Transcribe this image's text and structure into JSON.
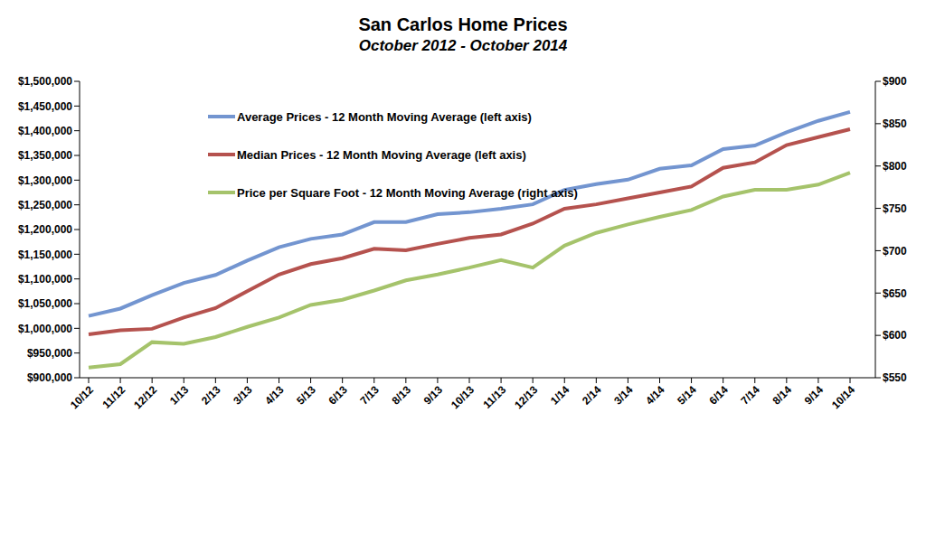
{
  "chart_data": {
    "type": "line",
    "title": "San Carlos Home Prices",
    "subtitle": "October 2012 - October 2014",
    "categories": [
      "10/12",
      "11/12",
      "12/12",
      "1/13",
      "2/13",
      "3/13",
      "4/13",
      "5/13",
      "6/13",
      "7/13",
      "8/13",
      "9/13",
      "10/13",
      "11/13",
      "12/13",
      "1/14",
      "2/14",
      "3/14",
      "4/14",
      "5/14",
      "6/14",
      "7/14",
      "8/14",
      "9/14",
      "10/14"
    ],
    "series": [
      {
        "name": "Average Prices - 12 Month Moving Average (left axis)",
        "color": "#7395d0",
        "values": [
          1025000,
          1040000,
          1067000,
          1092000,
          1108000,
          1137000,
          1164000,
          1181000,
          1190000,
          1215000,
          1215000,
          1231000,
          1235000,
          1242000,
          1251000,
          1280000,
          1292000,
          1301000,
          1323000,
          1330000,
          1363000,
          1370000,
          1397000,
          1420000,
          1438000
        ]
      },
      {
        "name": "Median Prices - 12 Month Moving Average (left axis)",
        "color": "#b5524e",
        "values": [
          988000,
          996000,
          999000,
          1022000,
          1041000,
          1075000,
          1109000,
          1130000,
          1142000,
          1161000,
          1158000,
          1171000,
          1183000,
          1190000,
          1212000,
          1242000,
          1251000,
          1263000,
          1275000,
          1287000,
          1325000,
          1336000,
          1371000,
          1387000,
          1403000
        ]
      },
      {
        "name": "Price per Square Foot - 12 Month Moving Average (right axis)",
        "color": "#a5c36b",
        "axis": "y2",
        "values": [
          562,
          566,
          592,
          590,
          598,
          610,
          621,
          636,
          642,
          653,
          665,
          672,
          680,
          689,
          680,
          706,
          721,
          731,
          740,
          748,
          764,
          772,
          772,
          778,
          792
        ]
      }
    ],
    "ylim": [
      900000,
      1500000
    ],
    "yticks": [
      {
        "value": 900000,
        "label": "$900,000"
      },
      {
        "value": 950000,
        "label": "$950,000"
      },
      {
        "value": 1000000,
        "label": "$1,000,000"
      },
      {
        "value": 1050000,
        "label": "$1,050,000"
      },
      {
        "value": 1100000,
        "label": "$1,100,000"
      },
      {
        "value": 1150000,
        "label": "$1,150,000"
      },
      {
        "value": 1200000,
        "label": "$1,200,000"
      },
      {
        "value": 1250000,
        "label": "$1,250,000"
      },
      {
        "value": 1300000,
        "label": "$1,300,000"
      },
      {
        "value": 1350000,
        "label": "$1,350,000"
      },
      {
        "value": 1400000,
        "label": "$1,400,000"
      },
      {
        "value": 1450000,
        "label": "$1,450,000"
      },
      {
        "value": 1500000,
        "label": "$1,500,000"
      }
    ],
    "y2lim": [
      550,
      900
    ],
    "y2ticks": [
      {
        "value": 550,
        "label": "$550"
      },
      {
        "value": 600,
        "label": "$600"
      },
      {
        "value": 650,
        "label": "$650"
      },
      {
        "value": 700,
        "label": "$700"
      },
      {
        "value": 750,
        "label": "$750"
      },
      {
        "value": 800,
        "label": "$800"
      },
      {
        "value": 850,
        "label": "$850"
      },
      {
        "value": 900,
        "label": "$900"
      }
    ],
    "grid": false,
    "legend": "top-left"
  }
}
